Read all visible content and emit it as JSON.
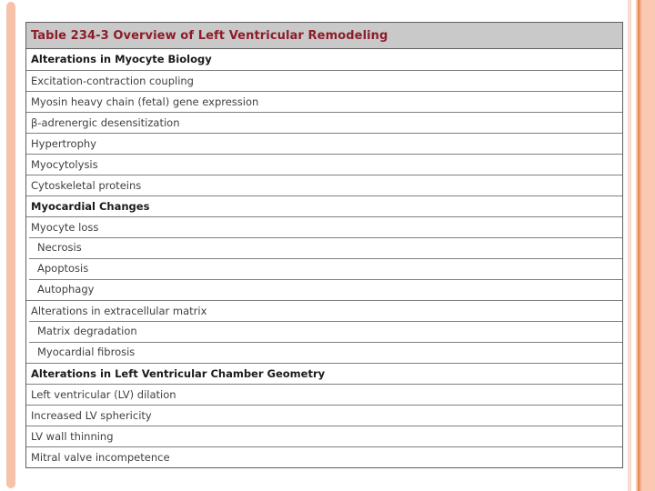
{
  "table": {
    "title": "Table 234-3 Overview of Left Ventricular Remodeling",
    "rows": [
      {
        "label": "Alterations in Myocyte Biology",
        "style": "section"
      },
      {
        "label": "Excitation-contraction coupling",
        "style": "item"
      },
      {
        "label": "Myosin heavy chain (fetal) gene expression",
        "style": "item"
      },
      {
        "label": "β-adrenergic desensitization",
        "style": "item"
      },
      {
        "label": "Hypertrophy",
        "style": "item"
      },
      {
        "label": "Myocytolysis",
        "style": "item"
      },
      {
        "label": "Cytoskeletal proteins",
        "style": "item"
      },
      {
        "label": "Myocardial Changes",
        "style": "section"
      },
      {
        "label": "Myocyte loss",
        "style": "item"
      },
      {
        "label": "Necrosis",
        "style": "subitem"
      },
      {
        "label": "Apoptosis",
        "style": "subitem"
      },
      {
        "label": "Autophagy",
        "style": "subitem"
      },
      {
        "label": "Alterations in extracellular matrix",
        "style": "item"
      },
      {
        "label": "Matrix degradation",
        "style": "subitem"
      },
      {
        "label": "Myocardial fibrosis",
        "style": "subitem"
      },
      {
        "label": "Alterations in Left Ventricular Chamber Geometry",
        "style": "section"
      },
      {
        "label": "Left ventricular (LV) dilation",
        "style": "item"
      },
      {
        "label": "Increased LV sphericity",
        "style": "item"
      },
      {
        "label": "LV wall thinning",
        "style": "item"
      },
      {
        "label": "Mitral valve incompetence",
        "style": "item"
      }
    ]
  },
  "colors": {
    "accent-bar": "#f6c2a9",
    "stripe": "#f8dccd",
    "band": "#fbc9b2",
    "band-line": "#e08a4e",
    "band-inner": "#f3ae8d",
    "header-bg": "#c9c9c9",
    "header-text": "#8e1c28",
    "text": "#3f3f3f",
    "bold-text": "#1b1b1b",
    "border": "#7f7f7f",
    "outer-border": "#5f5f5f"
  }
}
